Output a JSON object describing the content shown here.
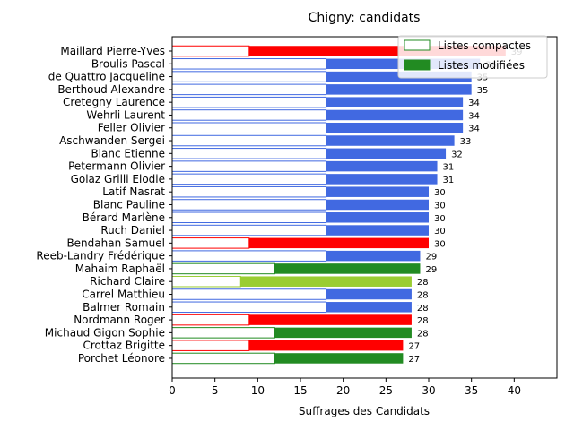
{
  "chart_data": {
    "type": "bar",
    "orientation": "horizontal",
    "title": "Chigny: candidats",
    "xlabel": "Suffrages des Candidats",
    "ylabel": "",
    "xlim": [
      0,
      45
    ],
    "xticks": [
      0,
      5,
      10,
      15,
      20,
      25,
      30,
      35,
      40
    ],
    "legend": {
      "placement": "top-right",
      "entries": [
        {
          "label": "Listes compactes",
          "style": "outline",
          "color": "#228b22"
        },
        {
          "label": "Listes modifiées",
          "style": "filled",
          "color": "#228b22"
        }
      ]
    },
    "categories": [
      "Maillard Pierre-Yves",
      "Broulis Pascal",
      "de Quattro Jacqueline",
      "Berthoud Alexandre",
      "Cretegny Laurence",
      "Wehrli Laurent",
      "Feller Olivier",
      "Aschwanden Sergei",
      "Blanc Etienne",
      "Petermann Olivier",
      "Golaz Grilli Elodie",
      "Latif Nasrat",
      "Blanc Pauline",
      "Bérard Marlène",
      "Ruch Daniel",
      "Bendahan Samuel",
      "Reeb-Landry Frédérique",
      "Mahaim Raphaël",
      "Richard Claire",
      "Carrel Matthieu",
      "Balmer Romain",
      "Nordmann Roger",
      "Michaud Gigon Sophie",
      "Crottaz Brigitte",
      "Porchet Léonore"
    ],
    "series": [
      {
        "name": "Listes compactes",
        "values": [
          9,
          18,
          18,
          18,
          18,
          18,
          18,
          18,
          18,
          18,
          18,
          18,
          18,
          18,
          18,
          9,
          18,
          12,
          8,
          18,
          18,
          9,
          12,
          9,
          12
        ]
      },
      {
        "name": "Listes modifiées",
        "values": [
          30,
          18,
          17,
          17,
          16,
          16,
          16,
          15,
          14,
          13,
          13,
          12,
          12,
          12,
          12,
          21,
          11,
          17,
          20,
          10,
          10,
          19,
          16,
          18,
          15
        ]
      }
    ],
    "totals": [
      39,
      36,
      35,
      35,
      34,
      34,
      34,
      33,
      32,
      31,
      31,
      30,
      30,
      30,
      30,
      30,
      29,
      29,
      28,
      28,
      28,
      28,
      28,
      27,
      27
    ],
    "colors": [
      "#ff0000",
      "#4169e1",
      "#4169e1",
      "#4169e1",
      "#4169e1",
      "#4169e1",
      "#4169e1",
      "#4169e1",
      "#4169e1",
      "#4169e1",
      "#4169e1",
      "#4169e1",
      "#4169e1",
      "#4169e1",
      "#4169e1",
      "#ff0000",
      "#4169e1",
      "#228b22",
      "#9acd32",
      "#4169e1",
      "#4169e1",
      "#ff0000",
      "#228b22",
      "#ff0000",
      "#228b22"
    ]
  }
}
